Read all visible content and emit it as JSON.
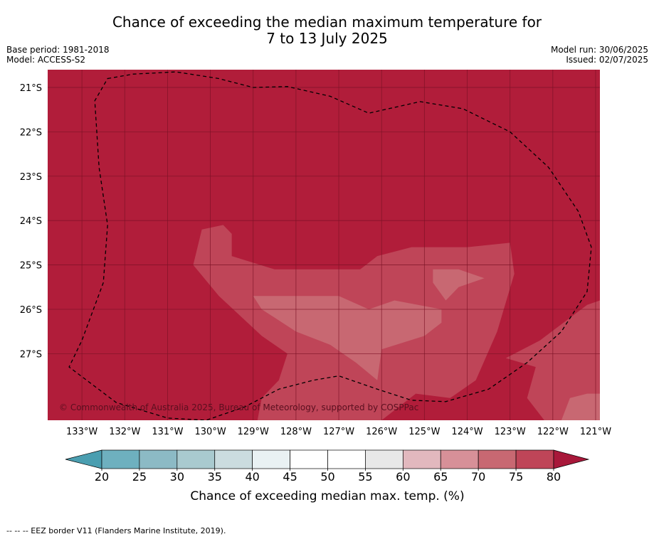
{
  "header": {
    "title_line1": "Chance of exceeding the median maximum temperature for",
    "title_line2": "7 to 13 July 2025",
    "base_period": "Base period: 1981-2018",
    "model": "Model: ACCESS-S2",
    "model_run": "Model run: 30/06/2025",
    "issued": "Issued: 02/07/2025"
  },
  "map": {
    "copyright": "© Commonwealth of Australia 2025, Bureau of Meteorology, supported by COSPPac",
    "lon_ticks": [
      "133°W",
      "132°W",
      "131°W",
      "130°W",
      "129°W",
      "128°W",
      "127°W",
      "126°W",
      "125°W",
      "124°W",
      "123°W",
      "122°W",
      "121°W"
    ],
    "lat_ticks": [
      "21°S",
      "22°S",
      "23°S",
      "24°S",
      "25°S",
      "26°S",
      "27°S"
    ],
    "lon_range": [
      -133.8,
      -120.9
    ],
    "lat_range": [
      -20.6,
      -28.5
    ],
    "background_color": "#b11d3a"
  },
  "chart_data": {
    "type": "heatmap",
    "title": "Chance of exceeding the median maximum temperature for 7 to 13 July 2025",
    "xlabel": "",
    "ylabel": "",
    "xlim": [
      -133.8,
      -120.9
    ],
    "ylim": [
      -28.5,
      -20.6
    ],
    "x_tick_labels": [
      "133°W",
      "132°W",
      "131°W",
      "130°W",
      "129°W",
      "128°W",
      "127°W",
      "126°W",
      "125°W",
      "124°W",
      "123°W",
      "122°W",
      "121°W"
    ],
    "y_tick_labels": [
      "21°S",
      "22°S",
      "23°S",
      "24°S",
      "25°S",
      "26°S",
      "27°S"
    ],
    "grid": true,
    "dominant_class": ">80",
    "regions": [
      {
        "level": "75-80",
        "polygon": [
          [
            -130.2,
            -24.2
          ],
          [
            -129.7,
            -24.1
          ],
          [
            -129.5,
            -24.3
          ],
          [
            -129.5,
            -24.8
          ],
          [
            -128.5,
            -25.1
          ],
          [
            -126.5,
            -25.1
          ],
          [
            -126.1,
            -24.8
          ],
          [
            -125.3,
            -24.6
          ],
          [
            -124.0,
            -24.6
          ],
          [
            -123.0,
            -24.5
          ],
          [
            -122.9,
            -25.2
          ],
          [
            -123.3,
            -26.5
          ],
          [
            -123.8,
            -27.6
          ],
          [
            -124.4,
            -28.0
          ],
          [
            -125.2,
            -27.9
          ],
          [
            -125.6,
            -28.2
          ],
          [
            -126.0,
            -28.5
          ],
          [
            -128.9,
            -28.5
          ],
          [
            -128.8,
            -28.0
          ],
          [
            -128.4,
            -27.6
          ],
          [
            -128.2,
            -27.0
          ],
          [
            -128.8,
            -26.6
          ],
          [
            -129.8,
            -25.7
          ],
          [
            -130.4,
            -25.0
          ],
          [
            -130.2,
            -24.2
          ]
        ]
      },
      {
        "level": "70-75",
        "polygon": [
          [
            -129.0,
            -25.7
          ],
          [
            -127.0,
            -25.7
          ],
          [
            -126.3,
            -26.0
          ],
          [
            -125.7,
            -25.8
          ],
          [
            -124.6,
            -26.0
          ],
          [
            -124.6,
            -26.3
          ],
          [
            -125.0,
            -26.6
          ],
          [
            -126.0,
            -26.9
          ],
          [
            -126.1,
            -27.6
          ],
          [
            -126.6,
            -27.2
          ],
          [
            -127.2,
            -26.8
          ],
          [
            -128.0,
            -26.5
          ],
          [
            -128.8,
            -26.0
          ],
          [
            -129.0,
            -25.7
          ]
        ]
      },
      {
        "level": "70-75",
        "polygon": [
          [
            -124.8,
            -25.1
          ],
          [
            -124.2,
            -25.1
          ],
          [
            -123.6,
            -25.3
          ],
          [
            -124.2,
            -25.5
          ],
          [
            -124.5,
            -25.8
          ],
          [
            -124.8,
            -25.4
          ],
          [
            -124.8,
            -25.1
          ]
        ]
      },
      {
        "level": "75-80",
        "polygon": [
          [
            -120.9,
            -25.8
          ],
          [
            -121.2,
            -25.9
          ],
          [
            -122.3,
            -26.7
          ],
          [
            -123.1,
            -27.1
          ],
          [
            -122.4,
            -27.3
          ],
          [
            -122.6,
            -28.0
          ],
          [
            -122.2,
            -28.5
          ],
          [
            -120.9,
            -28.5
          ]
        ]
      },
      {
        "level": "70-75",
        "polygon": [
          [
            -121.8,
            -28.5
          ],
          [
            -121.6,
            -28.0
          ],
          [
            -121.2,
            -27.9
          ],
          [
            -120.9,
            -27.9
          ],
          [
            -120.9,
            -28.5
          ]
        ]
      }
    ],
    "colorbar": {
      "label": "Chance of exceeding median max. temp. (%)",
      "ticks": [
        "20",
        "25",
        "30",
        "35",
        "40",
        "45",
        "50",
        "55",
        "60",
        "65",
        "70",
        "75",
        "80"
      ],
      "levels": [
        20,
        25,
        30,
        35,
        40,
        45,
        50,
        55,
        60,
        65,
        70,
        75,
        80
      ],
      "colors": [
        "#6eb0bf",
        "#8cbac5",
        "#a9cacf",
        "#cbdcdf",
        "#e9f1f3",
        "#ffffff",
        "#ffffff",
        "#e8e8e8",
        "#e2b8be",
        "#d79098",
        "#c86872",
        "#bf4558"
      ],
      "under_color": "#4a9eb0",
      "over_color": "#a8183a"
    },
    "eez_boundary": [
      [
        -132.4,
        -20.8
      ],
      [
        -131.8,
        -20.7
      ],
      [
        -130.8,
        -20.65
      ],
      [
        -129.8,
        -20.8
      ],
      [
        -129.0,
        -21.0
      ],
      [
        -128.2,
        -20.98
      ],
      [
        -127.2,
        -21.2
      ],
      [
        -126.3,
        -21.58
      ],
      [
        -125.1,
        -21.32
      ],
      [
        -124.1,
        -21.48
      ],
      [
        -123.0,
        -22.0
      ],
      [
        -122.1,
        -22.8
      ],
      [
        -121.4,
        -23.8
      ],
      [
        -121.1,
        -24.6
      ],
      [
        -121.2,
        -25.6
      ],
      [
        -121.8,
        -26.5
      ],
      [
        -122.6,
        -27.2
      ],
      [
        -123.5,
        -27.8
      ],
      [
        -124.5,
        -28.08
      ],
      [
        -125.3,
        -28.05
      ],
      [
        -126.1,
        -27.8
      ],
      [
        -127.0,
        -27.5
      ],
      [
        -127.6,
        -27.6
      ],
      [
        -128.4,
        -27.8
      ],
      [
        -129.2,
        -28.2
      ],
      [
        -130.1,
        -28.5
      ],
      [
        -131.0,
        -28.45
      ],
      [
        -132.2,
        -28.1
      ],
      [
        -133.3,
        -27.3
      ],
      [
        -133.0,
        -26.7
      ],
      [
        -132.5,
        -25.4
      ],
      [
        -132.4,
        -24.1
      ],
      [
        -132.6,
        -22.8
      ],
      [
        -132.7,
        -21.3
      ],
      [
        -132.4,
        -20.8
      ]
    ],
    "colorbar_label": "Chance of exceeding median max. temp. (%)"
  },
  "footer": {
    "text": "-- -- -- EEZ border V11 (Flanders Marine Institute, 2019)."
  }
}
